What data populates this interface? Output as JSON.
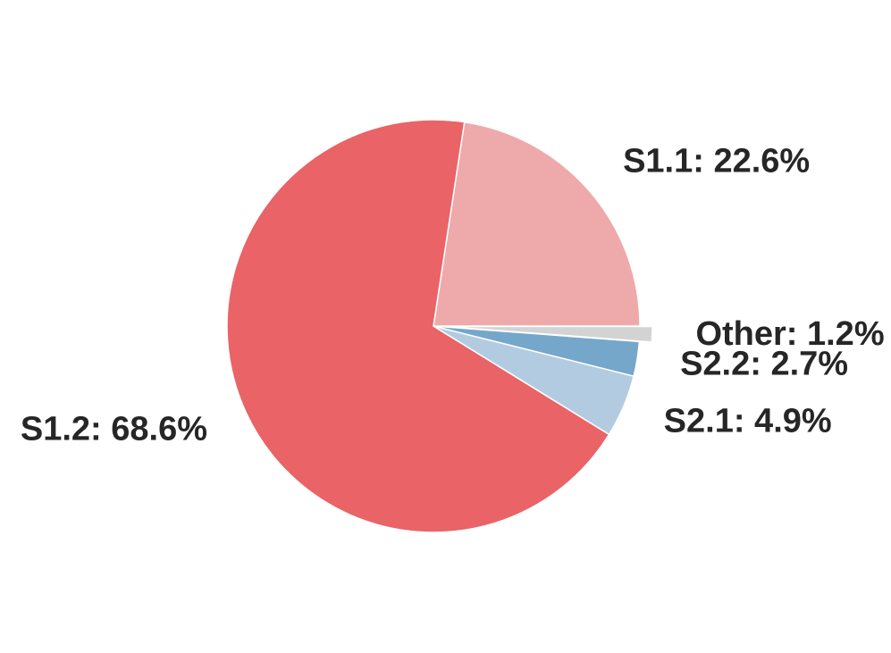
{
  "chart_data": {
    "type": "pie",
    "title": "",
    "start_angle_deg": 0,
    "direction": "counterclockwise",
    "slices": [
      {
        "name": "S1.1",
        "value": 22.6,
        "label": "S1.1: 22.6%",
        "color": "#eeaaaa",
        "explode": false
      },
      {
        "name": "S1.2",
        "value": 68.6,
        "label": "S1.2: 68.6%",
        "color": "#e96367",
        "explode": false
      },
      {
        "name": "S2.1",
        "value": 4.9,
        "label": "S2.1: 4.9%",
        "color": "#b3cbe0",
        "explode": false
      },
      {
        "name": "S2.2",
        "value": 2.7,
        "label": "S2.2: 2.7%",
        "color": "#75a7cb",
        "explode": false
      },
      {
        "name": "Other",
        "value": 1.2,
        "label": "Other: 1.2%",
        "color": "#d3d3d3",
        "explode": true
      }
    ]
  }
}
